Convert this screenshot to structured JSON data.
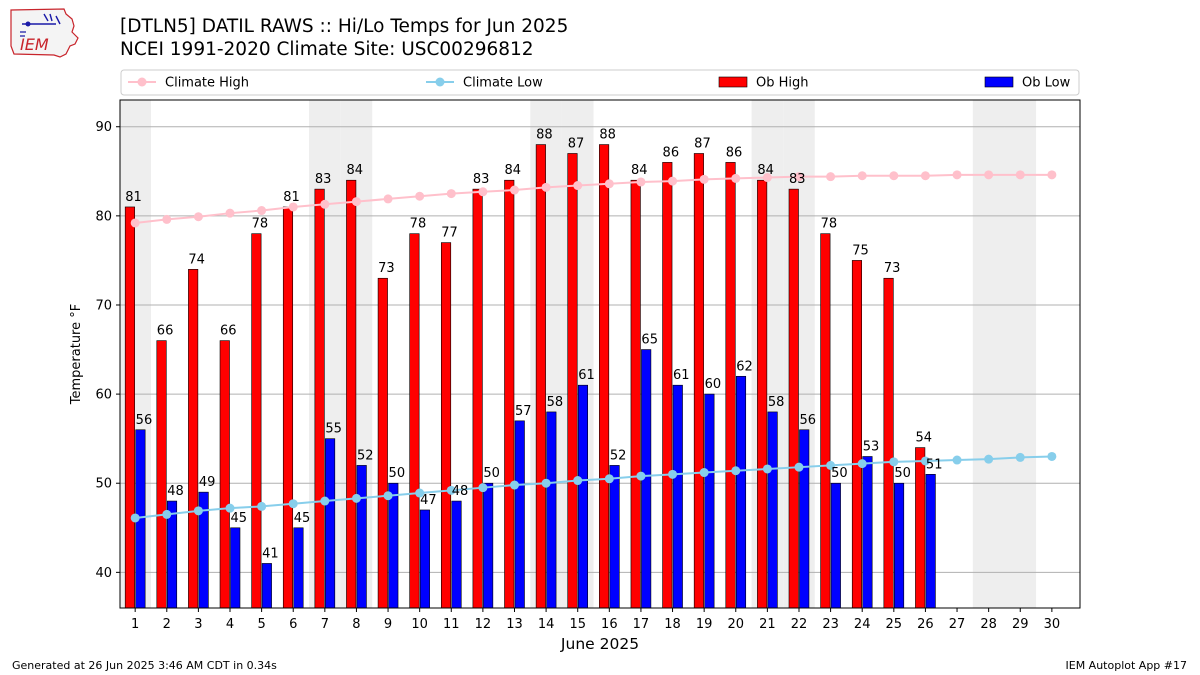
{
  "header": {
    "title_line1": "[DTLN5] DATIL RAWS :: Hi/Lo Temps for Jun 2025",
    "title_line2": "NCEI 1991-2020 Climate Site: USC00296812",
    "logo_text": "IEM"
  },
  "footer": {
    "generated": "Generated at 26 Jun 2025 3:46 AM CDT in 0.34s",
    "app": "IEM Autoplot App #17"
  },
  "colors": {
    "ob_high": "#ff0000",
    "ob_low": "#0000ff",
    "climate_high": "#ffc0cb",
    "climate_low": "#87ceeb",
    "weekend_shade": "#eeeeee",
    "grid": "#b0b0b0"
  },
  "chart_data": {
    "type": "bar",
    "title": "[DTLN5] DATIL RAWS :: Hi/Lo Temps for Jun 2025",
    "subtitle": "NCEI 1991-2020 Climate Site: USC00296812",
    "xlabel": "June 2025",
    "ylabel": "Temperature °F",
    "ylim": [
      36,
      93
    ],
    "yticks": [
      40,
      50,
      60,
      70,
      80,
      90
    ],
    "grid": "horizontal",
    "legend_position": "top",
    "categories": [
      "1",
      "2",
      "3",
      "4",
      "5",
      "6",
      "7",
      "8",
      "9",
      "10",
      "11",
      "12",
      "13",
      "14",
      "15",
      "16",
      "17",
      "18",
      "19",
      "20",
      "21",
      "22",
      "23",
      "24",
      "25",
      "26",
      "27",
      "28",
      "29",
      "30"
    ],
    "weekend_days": [
      1,
      7,
      8,
      14,
      15,
      21,
      22,
      28,
      29
    ],
    "series": [
      {
        "name": "Climate High",
        "kind": "line",
        "values": [
          79.2,
          79.6,
          79.9,
          80.3,
          80.6,
          81.0,
          81.3,
          81.6,
          81.9,
          82.2,
          82.5,
          82.7,
          82.9,
          83.2,
          83.4,
          83.6,
          83.8,
          83.9,
          84.1,
          84.2,
          84.3,
          84.4,
          84.4,
          84.5,
          84.5,
          84.5,
          84.6,
          84.6,
          84.6,
          84.6
        ]
      },
      {
        "name": "Climate Low",
        "kind": "line",
        "values": [
          46.1,
          46.5,
          46.9,
          47.2,
          47.4,
          47.7,
          48.0,
          48.3,
          48.6,
          48.9,
          49.2,
          49.5,
          49.8,
          50.0,
          50.3,
          50.5,
          50.8,
          51.0,
          51.2,
          51.4,
          51.6,
          51.8,
          52.0,
          52.2,
          52.4,
          52.5,
          52.6,
          52.7,
          52.9,
          53.0
        ]
      },
      {
        "name": "Ob High",
        "kind": "bar",
        "values": [
          81,
          66,
          74,
          66,
          78,
          81,
          83,
          84,
          73,
          78,
          77,
          83,
          84,
          88,
          87,
          88,
          84,
          86,
          87,
          86,
          84,
          83,
          78,
          75,
          73,
          54,
          null,
          null,
          null,
          null
        ]
      },
      {
        "name": "Ob Low",
        "kind": "bar",
        "values": [
          56,
          48,
          49,
          45,
          41,
          45,
          55,
          52,
          50,
          47,
          48,
          50,
          57,
          58,
          61,
          52,
          65,
          61,
          60,
          62,
          58,
          56,
          50,
          53,
          50,
          51,
          null,
          null,
          null,
          null
        ]
      }
    ]
  }
}
